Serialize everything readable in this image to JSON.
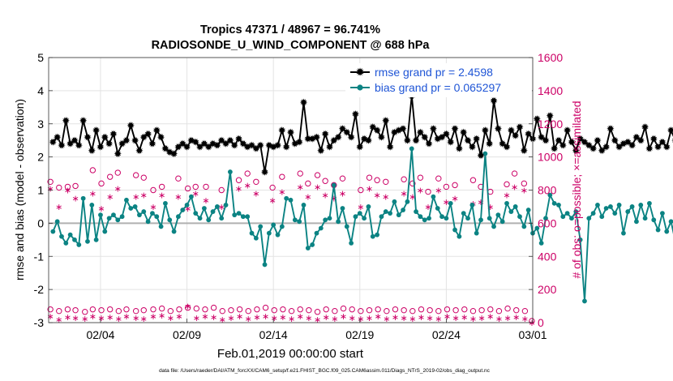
{
  "chart_data": {
    "type": "line",
    "title": "Tropics 47371 / 48967 = 96.741%",
    "subtitle": "RADIOSONDE_U_WIND_COMPONENT @ 688 hPa",
    "xlabel": "Feb.01,2019 00:00:00 start",
    "ylabel": "rmse and bias (model - observation)",
    "ylabel_right": "# of obs: o=possible; ×=assimilated",
    "footer": "data file: /Users/raeder/DAI/ATM_forcXX/CAM6_setup/f.e21.FHIST_BGC.f09_025.CAM6assim.011/Diags_NTrS_2019-02/obs_diag_output.nc",
    "xlim": [
      1.0,
      29.0
    ],
    "ylim": [
      -3,
      5
    ],
    "ylim_right": [
      0,
      1600
    ],
    "x_ticks": [
      {
        "value": 4,
        "label": "02/04"
      },
      {
        "value": 9,
        "label": "02/09"
      },
      {
        "value": 14,
        "label": "02/14"
      },
      {
        "value": 19,
        "label": "02/19"
      },
      {
        "value": 24,
        "label": "02/24"
      },
      {
        "value": 29,
        "label": "03/01"
      }
    ],
    "y_ticks": [
      {
        "value": -3,
        "label": "-3"
      },
      {
        "value": -2,
        "label": "-2"
      },
      {
        "value": -1,
        "label": "-1"
      },
      {
        "value": 0,
        "label": "0"
      },
      {
        "value": 1,
        "label": "1"
      },
      {
        "value": 2,
        "label": "2"
      },
      {
        "value": 3,
        "label": "3"
      },
      {
        "value": 4,
        "label": "4"
      },
      {
        "value": 5,
        "label": "5"
      }
    ],
    "y_right_ticks": [
      {
        "value": 0,
        "label": "0"
      },
      {
        "value": 200,
        "label": "200"
      },
      {
        "value": 400,
        "label": "400"
      },
      {
        "value": 600,
        "label": "600"
      },
      {
        "value": 800,
        "label": "800"
      },
      {
        "value": 1000,
        "label": "1000"
      },
      {
        "value": 1200,
        "label": "1200"
      },
      {
        "value": 1400,
        "label": "1400"
      },
      {
        "value": 1600,
        "label": "1600"
      }
    ],
    "start_x": 1.25,
    "step_x": 0.25,
    "series": [
      {
        "name": "rmse grand pr = 2.4598",
        "color": "#000000",
        "marker": "star",
        "values": [
          2.45,
          2.6,
          2.35,
          3.1,
          2.4,
          2.5,
          2.35,
          3.1,
          2.6,
          2.2,
          2.8,
          2.3,
          2.6,
          2.4,
          2.7,
          2.1,
          2.4,
          2.5,
          2.95,
          2.5,
          2.2,
          2.6,
          2.7,
          2.4,
          2.8,
          2.6,
          2.25,
          2.15,
          2.1,
          2.3,
          2.4,
          2.3,
          2.5,
          2.45,
          2.3,
          2.4,
          2.3,
          2.4,
          2.35,
          2.5,
          2.4,
          2.5,
          2.35,
          2.55,
          2.4,
          2.3,
          2.35,
          2.25,
          2.35,
          1.55,
          2.35,
          2.3,
          2.35,
          2.8,
          2.3,
          2.75,
          2.4,
          2.45,
          3.65,
          2.55,
          2.55,
          2.6,
          2.2,
          2.7,
          2.3,
          2.5,
          2.6,
          2.85,
          2.75,
          2.6,
          3.3,
          2.3,
          2.55,
          2.5,
          2.9,
          2.8,
          2.6,
          3.1,
          2.3,
          2.75,
          2.8,
          2.85,
          2.5,
          3.85,
          2.5,
          2.75,
          2.6,
          2.4,
          2.85,
          2.55,
          2.6,
          2.7,
          2.45,
          2.85,
          2.25,
          2.75,
          2.5,
          2.3,
          2.55,
          2.05,
          2.8,
          2.4,
          3.7,
          2.85,
          2.4,
          2.3,
          2.8,
          2.65,
          2.9,
          2.2,
          2.7,
          2.55,
          3.15,
          2.6,
          2.5,
          3.25,
          2.25,
          2.5,
          2.35,
          2.8,
          2.45,
          2.2,
          2.55,
          2.45,
          2.35,
          2.25,
          2.5,
          2.2,
          2.3,
          2.85,
          2.5,
          2.3,
          2.4,
          2.45,
          2.35,
          2.6,
          2.5,
          2.9,
          2.25,
          2.55,
          2.3,
          2.45,
          2.3,
          2.8,
          2.5,
          2.35,
          3.05,
          2.4,
          2.55,
          2.35,
          2.6,
          2.25,
          2.7,
          2.4,
          3.35,
          2.3,
          2.55,
          2.1,
          2.5,
          2.3,
          2.15,
          2.05,
          2.15
        ]
      },
      {
        "name": "bias grand pr = 0.065297",
        "color": "#0b8383",
        "marker": "circle",
        "values": [
          -0.25,
          0.05,
          -0.4,
          -0.6,
          -0.35,
          -0.5,
          -0.65,
          0.75,
          -0.55,
          0.55,
          -0.5,
          0.25,
          -0.25,
          0.15,
          0.25,
          0.1,
          0.2,
          0.7,
          0.45,
          0.5,
          0.25,
          0.35,
          0.05,
          0.3,
          0.2,
          -0.1,
          0.6,
          0.1,
          -0.25,
          0.2,
          0.4,
          0.55,
          0.8,
          0.3,
          0.15,
          0.45,
          0.1,
          0.35,
          0.5,
          0.15,
          0.55,
          1.55,
          0.25,
          0.3,
          0.2,
          0.2,
          -0.3,
          -0.45,
          -0.1,
          -1.25,
          -0.3,
          -0.05,
          -0.35,
          -0.1,
          0.75,
          0.7,
          0.1,
          0.05,
          0.55,
          -0.75,
          -0.65,
          -0.3,
          -0.15,
          0.1,
          0.15,
          1.15,
          0.05,
          0.45,
          -0.1,
          -0.6,
          0.2,
          0.3,
          0.15,
          0.5,
          -0.4,
          -0.35,
          0.2,
          0.35,
          0.3,
          0.65,
          0.25,
          0.4,
          0.65,
          2.25,
          0.35,
          0.2,
          0.1,
          0.15,
          0.8,
          0.45,
          0.2,
          0.15,
          0.6,
          -0.2,
          -0.4,
          0.3,
          0.15,
          0.55,
          -0.3,
          0.1,
          2.1,
          0.15,
          -0.1,
          0.25,
          0.05,
          0.6,
          0.35,
          0.5,
          0.2,
          -0.1,
          0.4,
          -0.3,
          -0.15,
          -0.6,
          0.15,
          0.85,
          0.6,
          0.55,
          0.2,
          0.3,
          0.15,
          0.35,
          -0.5,
          -2.35,
          0.15,
          0.3,
          0.55,
          0.2,
          0.45,
          0.5,
          0.3,
          0.55,
          -0.3,
          0.35,
          0.5,
          0.05,
          0.55,
          0.15,
          0.6,
          0.1,
          -0.2,
          0.3,
          -0.25,
          0.05,
          -0.55,
          0.35,
          0.1,
          0.45,
          -0.3,
          0.2,
          0.75,
          0.4,
          1.65,
          -0.35,
          0.1,
          0.2,
          0.3,
          0.6,
          0.4,
          -0.1,
          -0.2,
          -0.2,
          -0.15
        ]
      }
    ],
    "obs_high": {
      "x": [
        1.1,
        1.6,
        2.1,
        2.55,
        3.55,
        4.05,
        4.55,
        5.0,
        6.05,
        6.5,
        7.05,
        7.55,
        8.5,
        9.05,
        9.5,
        10.1,
        11.0,
        12.0,
        12.5,
        13.0,
        13.95,
        14.5,
        15.55,
        16.0,
        16.55,
        17.0,
        17.5,
        18.0,
        19.05,
        19.55,
        20.0,
        20.5,
        21.55,
        22.05,
        22.5,
        22.95,
        23.55,
        24.0,
        24.5,
        25.55,
        26.0,
        26.55,
        27.5,
        27.95,
        28.5
      ],
      "possible": [
        850,
        815,
        820,
        825,
        920,
        840,
        880,
        905,
        890,
        875,
        800,
        820,
        870,
        810,
        820,
        820,
        800,
        860,
        900,
        850,
        815,
        880,
        900,
        840,
        890,
        855,
        830,
        870,
        800,
        875,
        860,
        850,
        865,
        840,
        875,
        790,
        870,
        820,
        830,
        860,
        820,
        790,
        835,
        900,
        840
      ],
      "assimilated": [
        810,
        700,
        800,
        750,
        780,
        690,
        760,
        810,
        760,
        770,
        700,
        770,
        760,
        690,
        780,
        740,
        700,
        810,
        830,
        780,
        740,
        790,
        820,
        760,
        820,
        770,
        750,
        780,
        700,
        810,
        770,
        760,
        780,
        760,
        800,
        700,
        800,
        730,
        750,
        720,
        730,
        700,
        770,
        820,
        800
      ]
    },
    "obs_low": {
      "x": [
        1.1,
        1.6,
        2.1,
        2.55,
        3.1,
        3.55,
        4.05,
        4.55,
        5.05,
        5.5,
        6.05,
        6.5,
        7.05,
        7.55,
        8.05,
        8.55,
        9.05,
        9.55,
        10.05,
        10.55,
        11.05,
        11.55,
        12.05,
        12.55,
        13.05,
        13.55,
        14.05,
        14.55,
        15.05,
        15.55,
        16.05,
        16.55,
        17.05,
        17.55,
        18.05,
        18.55,
        19.05,
        19.55,
        20.05,
        20.55,
        21.05,
        21.55,
        22.05,
        22.55,
        23.05,
        23.55,
        24.05,
        24.55,
        25.05,
        25.55,
        26.05,
        26.55,
        27.05,
        27.55,
        28.05,
        28.55,
        28.95
      ],
      "possible": [
        80,
        70,
        80,
        75,
        65,
        80,
        75,
        80,
        70,
        80,
        70,
        75,
        80,
        85,
        70,
        80,
        90,
        85,
        80,
        90,
        70,
        75,
        80,
        70,
        80,
        90,
        75,
        80,
        70,
        80,
        75,
        65,
        80,
        70,
        85,
        80,
        70,
        75,
        80,
        70,
        80,
        75,
        70,
        80,
        75,
        70,
        80,
        75,
        80,
        70,
        75,
        80,
        70,
        85,
        75,
        70,
        10
      ],
      "assimilated": [
        40,
        20,
        35,
        30,
        25,
        40,
        30,
        35,
        25,
        40,
        30,
        25,
        40,
        45,
        30,
        40,
        100,
        30,
        40,
        35,
        20,
        30,
        40,
        25,
        35,
        40,
        30,
        35,
        25,
        40,
        30,
        20,
        35,
        25,
        40,
        30,
        25,
        30,
        40,
        25,
        35,
        30,
        25,
        35,
        30,
        25,
        40,
        30,
        35,
        25,
        30,
        40,
        25,
        30,
        35,
        25,
        0
      ]
    }
  },
  "colors": {
    "rmse": "#000000",
    "bias": "#0b8383",
    "obs": "#cc0066",
    "legend_text": "#1f55d6",
    "zero_line": "#b0b0b0",
    "grid": "#e3e3e3"
  }
}
